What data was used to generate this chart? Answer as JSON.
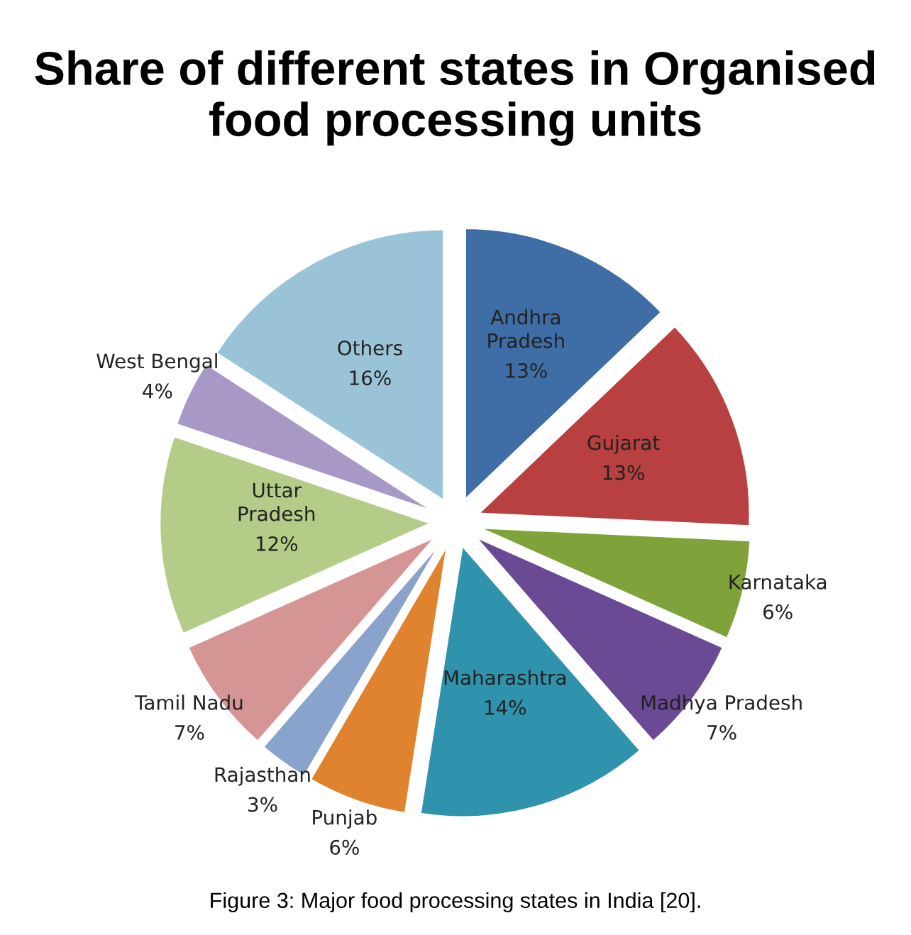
{
  "chart_data": {
    "type": "pie",
    "title": "Share of different states in Organised food processing units",
    "categories": [
      "Andhra Pradesh",
      "Gujarat",
      "Karnataka",
      "Madhya Pradesh",
      "Maharashtra",
      "Punjab",
      "Rajasthan",
      "Tamil Nadu",
      "Uttar Pradesh",
      "West Bengal",
      "Others"
    ],
    "values": [
      13,
      13,
      6,
      7,
      14,
      6,
      3,
      7,
      12,
      4,
      16
    ],
    "colors": [
      "#3f6ea6",
      "#b84040",
      "#7fa23a",
      "#6a4a94",
      "#2f93ad",
      "#e0832f",
      "#8aa3cc",
      "#d69595",
      "#b5cc88",
      "#a898c6",
      "#9bc3d8"
    ],
    "value_labels": [
      "13%",
      "13%",
      "6%",
      "7%",
      "14%",
      "6%",
      "3%",
      "7%",
      "12%",
      "4%",
      "16%"
    ],
    "annotations": [
      "Figure 3: Major food processing states in India [20]."
    ]
  }
}
